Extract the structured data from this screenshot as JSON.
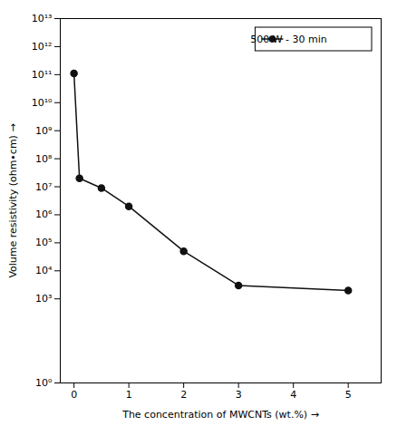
{
  "chart_data": {
    "type": "line",
    "xlabel": "The concentration of MWCNTs (wt.%)",
    "ylabel": "Volume resistivity (ohm•cm)",
    "x": [
      0.0,
      0.1,
      0.5,
      1.0,
      2.0,
      3.0,
      5.0
    ],
    "series": [
      {
        "name": "500 W - 30 min",
        "color": "#111111",
        "marker": "circle",
        "values": [
          110000000000,
          20000000,
          9000000,
          2000000,
          50000,
          3000,
          2000
        ]
      }
    ],
    "log": "y",
    "xlim": [
      -0.25,
      5.6
    ],
    "ylim": [
      1,
      10000000000000
    ],
    "xticks": [
      0,
      1,
      2,
      3,
      4,
      5
    ],
    "yticks": [
      {
        "value": 1,
        "label": "10⁰"
      },
      {
        "value": 1000,
        "label": "10³"
      },
      {
        "value": 10000,
        "label": "10⁴"
      },
      {
        "value": 100000,
        "label": "10⁵"
      },
      {
        "value": 1000000,
        "label": "10⁶"
      },
      {
        "value": 10000000,
        "label": "10⁷"
      },
      {
        "value": 100000000,
        "label": "10⁸"
      },
      {
        "value": 1000000000,
        "label": "10⁹"
      },
      {
        "value": 10000000000,
        "label": "10¹⁰"
      },
      {
        "value": 100000000000,
        "label": "10¹¹"
      },
      {
        "value": 1000000000000,
        "label": "10¹²"
      },
      {
        "value": 10000000000000,
        "label": "10¹³"
      }
    ],
    "legend": "upper right"
  }
}
